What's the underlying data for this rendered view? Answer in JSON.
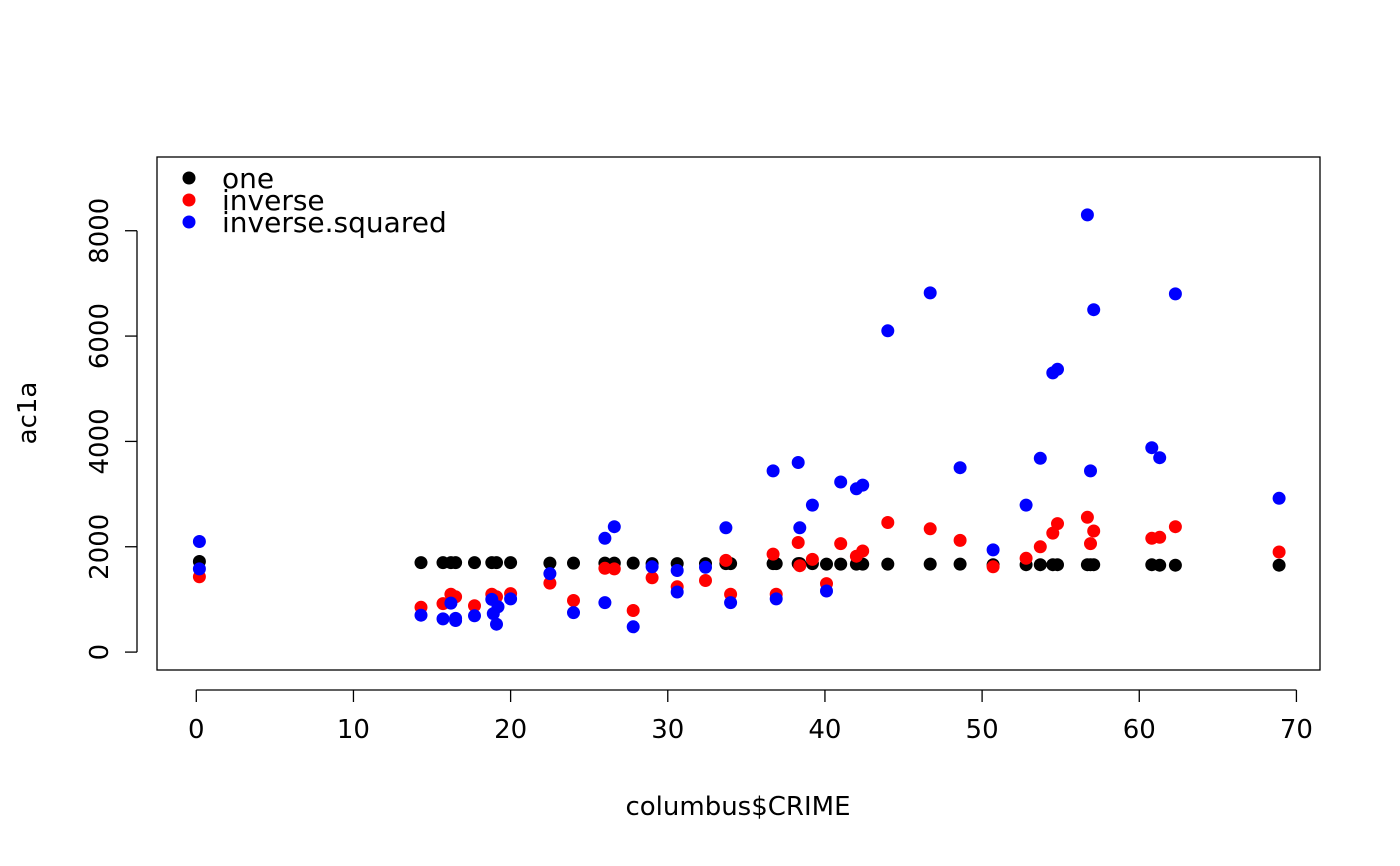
{
  "chart_data": {
    "type": "scatter",
    "title": "",
    "xlabel": "columbus$CRIME",
    "ylabel": "ac1a",
    "xlim": [
      -2.5,
      71.5
    ],
    "ylim": [
      -340,
      9400
    ],
    "x_ticks": [
      0,
      10,
      20,
      30,
      40,
      50,
      60,
      70
    ],
    "y_ticks": [
      0,
      2000,
      4000,
      6000,
      8000
    ],
    "grid": false,
    "legend": {
      "position": "top-left",
      "entries": [
        {
          "label": "one",
          "color": "#000000"
        },
        {
          "label": "inverse",
          "color": "#ff0000"
        },
        {
          "label": "inverse.squared",
          "color": "#0000ff"
        }
      ]
    },
    "series": [
      {
        "name": "one",
        "color": "#000000",
        "points": [
          [
            0.2,
            1720
          ],
          [
            14.3,
            1700
          ],
          [
            15.7,
            1700
          ],
          [
            16.2,
            1700
          ],
          [
            16.5,
            1700
          ],
          [
            17.7,
            1700
          ],
          [
            18.8,
            1700
          ],
          [
            19.1,
            1700
          ],
          [
            20.0,
            1700
          ],
          [
            22.5,
            1690
          ],
          [
            24.0,
            1690
          ],
          [
            26.0,
            1690
          ],
          [
            26.6,
            1690
          ],
          [
            27.8,
            1690
          ],
          [
            29.0,
            1680
          ],
          [
            30.6,
            1680
          ],
          [
            32.4,
            1680
          ],
          [
            33.7,
            1680
          ],
          [
            34.0,
            1680
          ],
          [
            36.7,
            1680
          ],
          [
            36.9,
            1680
          ],
          [
            38.3,
            1680
          ],
          [
            38.4,
            1680
          ],
          [
            39.2,
            1680
          ],
          [
            40.1,
            1670
          ],
          [
            41.0,
            1670
          ],
          [
            42.0,
            1670
          ],
          [
            42.4,
            1670
          ],
          [
            44.0,
            1670
          ],
          [
            46.7,
            1670
          ],
          [
            48.6,
            1670
          ],
          [
            50.7,
            1660
          ],
          [
            52.8,
            1660
          ],
          [
            53.7,
            1660
          ],
          [
            54.5,
            1660
          ],
          [
            54.8,
            1660
          ],
          [
            56.7,
            1660
          ],
          [
            56.9,
            1660
          ],
          [
            57.1,
            1660
          ],
          [
            60.8,
            1660
          ],
          [
            61.3,
            1650
          ],
          [
            62.3,
            1650
          ],
          [
            68.9,
            1650
          ]
        ]
      },
      {
        "name": "inverse",
        "color": "#ff0000",
        "points": [
          [
            0.2,
            1430
          ],
          [
            14.3,
            850
          ],
          [
            15.7,
            920
          ],
          [
            16.2,
            1100
          ],
          [
            16.5,
            1050
          ],
          [
            17.7,
            880
          ],
          [
            18.8,
            1100
          ],
          [
            19.1,
            1050
          ],
          [
            20.0,
            1110
          ],
          [
            22.5,
            1310
          ],
          [
            24.0,
            980
          ],
          [
            26.0,
            1590
          ],
          [
            26.6,
            1580
          ],
          [
            27.8,
            790
          ],
          [
            29.0,
            1410
          ],
          [
            30.6,
            1240
          ],
          [
            32.4,
            1360
          ],
          [
            33.7,
            1740
          ],
          [
            34.0,
            1100
          ],
          [
            36.7,
            1860
          ],
          [
            36.9,
            1100
          ],
          [
            38.3,
            2080
          ],
          [
            38.4,
            1640
          ],
          [
            39.2,
            1760
          ],
          [
            40.1,
            1300
          ],
          [
            41.0,
            2060
          ],
          [
            42.0,
            1820
          ],
          [
            42.4,
            1920
          ],
          [
            44.0,
            2460
          ],
          [
            46.7,
            2340
          ],
          [
            48.6,
            2120
          ],
          [
            50.7,
            1620
          ],
          [
            52.8,
            1780
          ],
          [
            53.7,
            2000
          ],
          [
            54.5,
            2260
          ],
          [
            54.8,
            2440
          ],
          [
            56.7,
            2560
          ],
          [
            56.9,
            2060
          ],
          [
            57.1,
            2300
          ],
          [
            60.8,
            2160
          ],
          [
            61.3,
            2180
          ],
          [
            62.3,
            2380
          ],
          [
            68.9,
            1900
          ]
        ]
      },
      {
        "name": "inverse.squared",
        "color": "#0000ff",
        "points": [
          [
            0.2,
            2100
          ],
          [
            0.2,
            1580
          ],
          [
            14.3,
            700
          ],
          [
            15.7,
            630
          ],
          [
            16.2,
            930
          ],
          [
            16.5,
            640
          ],
          [
            16.5,
            600
          ],
          [
            17.7,
            690
          ],
          [
            18.8,
            1000
          ],
          [
            18.9,
            730
          ],
          [
            19.1,
            530
          ],
          [
            19.2,
            860
          ],
          [
            20.0,
            1010
          ],
          [
            22.5,
            1490
          ],
          [
            24.0,
            750
          ],
          [
            26.0,
            2160
          ],
          [
            26.0,
            940
          ],
          [
            26.6,
            2380
          ],
          [
            27.8,
            480
          ],
          [
            29.0,
            1620
          ],
          [
            30.6,
            1140
          ],
          [
            30.6,
            1550
          ],
          [
            32.4,
            1610
          ],
          [
            33.7,
            2360
          ],
          [
            34.0,
            940
          ],
          [
            36.7,
            3440
          ],
          [
            36.9,
            1010
          ],
          [
            38.3,
            3600
          ],
          [
            38.4,
            2360
          ],
          [
            39.2,
            2790
          ],
          [
            40.1,
            1160
          ],
          [
            41.0,
            3230
          ],
          [
            42.0,
            3100
          ],
          [
            42.4,
            3170
          ],
          [
            44.0,
            6100
          ],
          [
            46.7,
            6820
          ],
          [
            48.6,
            3500
          ],
          [
            50.7,
            1940
          ],
          [
            52.8,
            2790
          ],
          [
            53.7,
            3680
          ],
          [
            54.5,
            5300
          ],
          [
            54.8,
            5370
          ],
          [
            56.7,
            8300
          ],
          [
            56.9,
            3440
          ],
          [
            57.1,
            6500
          ],
          [
            60.8,
            3880
          ],
          [
            61.3,
            3690
          ],
          [
            62.3,
            6800
          ],
          [
            68.9,
            2920
          ]
        ]
      }
    ]
  }
}
